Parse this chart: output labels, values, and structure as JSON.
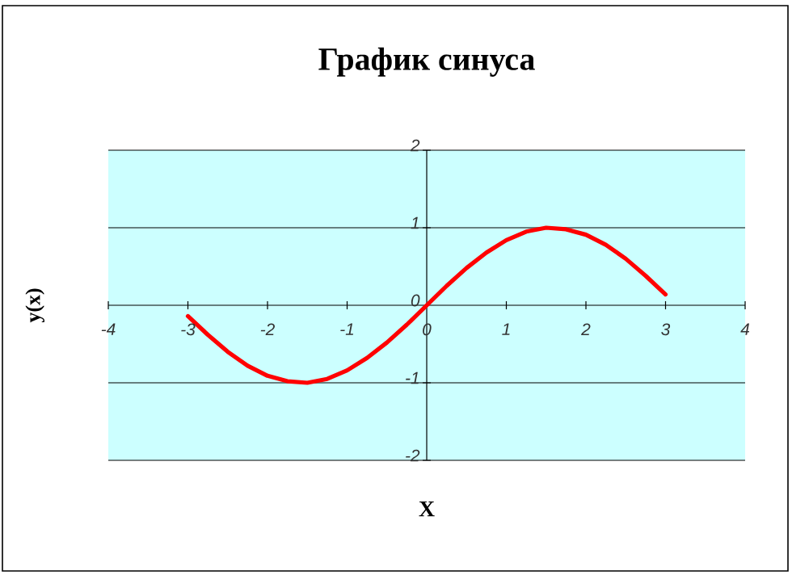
{
  "chart_data": {
    "type": "line",
    "title": "График синуса",
    "xlabel": "X",
    "ylabel": "y(x)",
    "x": [
      -3,
      -2.75,
      -2.5,
      -2.25,
      -2,
      -1.75,
      -1.5,
      -1.25,
      -1,
      -0.75,
      -0.5,
      -0.25,
      0,
      0.25,
      0.5,
      0.75,
      1,
      1.25,
      1.5,
      1.75,
      2,
      2.25,
      2.5,
      2.75,
      3
    ],
    "series": [
      {
        "color": "#ff0000",
        "values": [
          -0.14,
          -0.38,
          -0.6,
          -0.78,
          -0.91,
          -0.98,
          -1.0,
          -0.95,
          -0.84,
          -0.68,
          -0.48,
          -0.25,
          0,
          0.25,
          0.48,
          0.68,
          0.84,
          0.95,
          1.0,
          0.98,
          0.91,
          0.78,
          0.6,
          0.38,
          0.14
        ]
      }
    ],
    "xlim": [
      -4,
      4
    ],
    "ylim": [
      -2,
      2
    ],
    "xticks": [
      -4,
      -3,
      -2,
      -1,
      0,
      1,
      2,
      3,
      4
    ],
    "yticks": [
      -2,
      -1,
      0,
      1,
      2
    ],
    "grid": "y",
    "marker": "none",
    "line_style": "solid"
  }
}
